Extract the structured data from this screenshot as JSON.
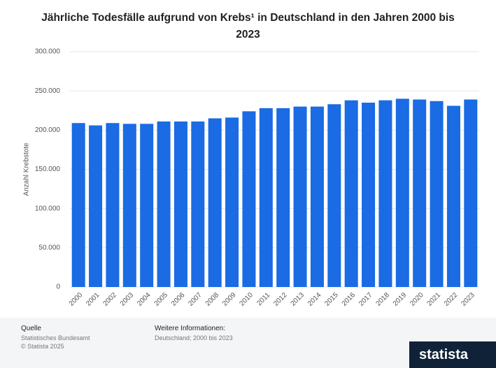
{
  "chart_data": {
    "type": "bar",
    "title": "Jährliche Todesfälle aufgrund von Krebs¹ in Deutschland in den Jahren 2000 bis 2023",
    "y_label": "Anzahl Krebstote",
    "categories": [
      "2000",
      "2001",
      "2002",
      "2003",
      "2004",
      "2005",
      "2006",
      "2007",
      "2008",
      "2009",
      "2010",
      "2011",
      "2012",
      "2013",
      "2014",
      "2015",
      "2016",
      "2017",
      "2018",
      "2019",
      "2020",
      "2021",
      "2022",
      "2023"
    ],
    "values": [
      209000,
      206000,
      209000,
      208000,
      208000,
      211000,
      211000,
      211000,
      215000,
      216000,
      224000,
      228000,
      228000,
      230000,
      230000,
      233000,
      238000,
      235000,
      238000,
      240000,
      239000,
      237000,
      231000,
      239000
    ],
    "color": "#1a6be4",
    "ylim": [
      0,
      300000
    ],
    "yticks": [
      0,
      {
        "value": 50000,
        "label": "50.000"
      },
      {
        "value": 100000,
        "label": "100.000"
      },
      {
        "value": 150000,
        "label": "150.000"
      },
      {
        "value": 200000,
        "label": "200.000"
      },
      {
        "value": 250000,
        "label": "250.000"
      },
      {
        "value": 300000,
        "label": "300.000"
      }
    ],
    "grid": true
  },
  "footer": {
    "source_heading": "Quelle",
    "source_lines": [
      "Statistisches Bundesamt",
      "© Statista 2025"
    ],
    "info_heading": "Weitere Informationen:",
    "info_text": "Deutschland; 2000 bis 2023",
    "logo": "statista"
  }
}
